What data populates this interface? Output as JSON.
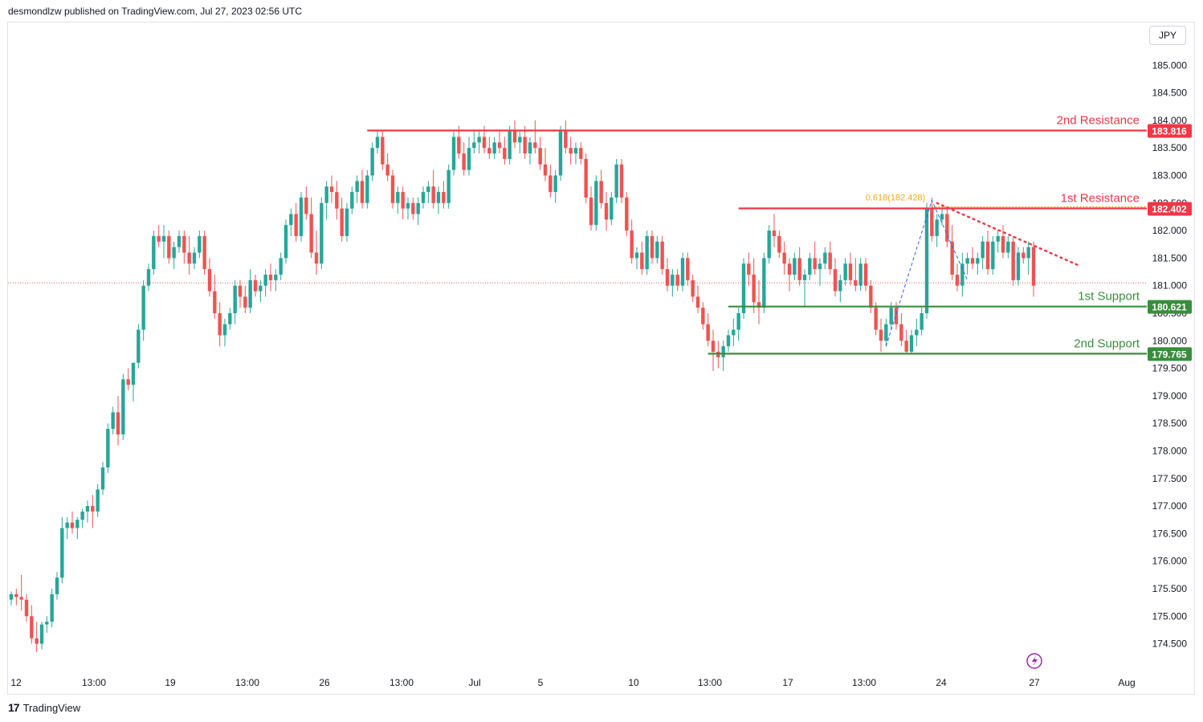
{
  "header": {
    "published": "desmondlzw published on TradingView.com, Jul 27, 2023 02:56 UTC"
  },
  "currency_button": "JPY",
  "footer": {
    "logo_glyph": "17",
    "brand": "TradingView"
  },
  "colors": {
    "up": "#26a69a",
    "down": "#ef5350",
    "resistance": "#f23645",
    "support": "#388e3c",
    "fib": "#f5a623",
    "trend": "#2962ff",
    "event": "#9c27b0"
  },
  "chart_data": {
    "type": "candlestick",
    "ylim": [
      174.1,
      185.5
    ],
    "y_ticks": [
      "174.500",
      "175.000",
      "175.500",
      "176.000",
      "176.500",
      "177.000",
      "177.500",
      "178.000",
      "178.500",
      "179.000",
      "179.500",
      "180.000",
      "180.500",
      "181.000",
      "181.500",
      "182.000",
      "182.500",
      "183.000",
      "183.500",
      "184.000",
      "184.500",
      "185.000"
    ],
    "x_ticks": [
      "12",
      "13:00",
      "19",
      "13:00",
      "26",
      "13:00",
      "Jul",
      "5",
      "10",
      "13:00",
      "17",
      "13:00",
      "24",
      "27",
      "Aug"
    ],
    "levels": [
      {
        "label": "2nd Resistance",
        "value": "183.816",
        "kind": "resistance"
      },
      {
        "label": "1st Resistance",
        "value": "182.402",
        "kind": "resistance"
      },
      {
        "label": "1st Support",
        "value": "180.621",
        "kind": "support"
      },
      {
        "label": "2nd Support",
        "value": "179.765",
        "kind": "support"
      }
    ],
    "fib_label": "0.618(182.428)",
    "current_price": 181.05,
    "candles": [
      [
        175.3,
        175.45,
        175.2,
        175.4
      ],
      [
        175.4,
        175.5,
        175.2,
        175.35
      ],
      [
        175.35,
        175.75,
        175.1,
        175.3
      ],
      [
        175.3,
        175.4,
        174.9,
        175.0
      ],
      [
        175.0,
        175.2,
        174.5,
        174.6
      ],
      [
        174.6,
        174.9,
        174.35,
        174.5
      ],
      [
        174.5,
        174.9,
        174.4,
        174.85
      ],
      [
        174.85,
        175.0,
        174.7,
        174.9
      ],
      [
        174.9,
        175.5,
        174.8,
        175.4
      ],
      [
        175.4,
        175.8,
        175.3,
        175.7
      ],
      [
        175.7,
        176.8,
        175.6,
        176.6
      ],
      [
        176.6,
        176.8,
        176.4,
        176.7
      ],
      [
        176.7,
        176.9,
        176.5,
        176.6
      ],
      [
        176.6,
        176.8,
        176.4,
        176.75
      ],
      [
        176.75,
        176.95,
        176.6,
        176.9
      ],
      [
        176.9,
        177.1,
        176.7,
        177.0
      ],
      [
        177.0,
        177.2,
        176.6,
        176.9
      ],
      [
        176.9,
        177.4,
        176.8,
        177.3
      ],
      [
        177.3,
        177.8,
        177.2,
        177.7
      ],
      [
        177.7,
        178.5,
        177.6,
        178.4
      ],
      [
        178.4,
        178.8,
        178.3,
        178.7
      ],
      [
        178.7,
        179.0,
        178.1,
        178.3
      ],
      [
        178.3,
        179.4,
        178.2,
        179.3
      ],
      [
        179.3,
        179.5,
        179.1,
        179.2
      ],
      [
        179.2,
        179.6,
        178.9,
        179.6
      ],
      [
        179.6,
        180.3,
        179.5,
        180.2
      ],
      [
        180.2,
        181.1,
        180.0,
        181.0
      ],
      [
        181.0,
        181.4,
        180.9,
        181.3
      ],
      [
        181.3,
        182.0,
        181.2,
        181.9
      ],
      [
        181.9,
        182.1,
        181.7,
        181.8
      ],
      [
        181.8,
        182.1,
        181.5,
        181.9
      ],
      [
        181.9,
        182.0,
        181.4,
        181.5
      ],
      [
        181.5,
        181.8,
        181.3,
        181.7
      ],
      [
        181.7,
        182.0,
        181.6,
        181.9
      ],
      [
        181.9,
        182.0,
        181.4,
        181.6
      ],
      [
        181.6,
        181.9,
        181.2,
        181.4
      ],
      [
        181.4,
        181.7,
        181.3,
        181.6
      ],
      [
        181.6,
        182.0,
        181.5,
        181.9
      ],
      [
        181.9,
        182.0,
        181.2,
        181.3
      ],
      [
        181.3,
        181.5,
        180.8,
        180.9
      ],
      [
        180.9,
        181.2,
        180.4,
        180.5
      ],
      [
        180.5,
        180.7,
        179.9,
        180.1
      ],
      [
        180.1,
        180.4,
        179.9,
        180.3
      ],
      [
        180.3,
        180.6,
        180.2,
        180.5
      ],
      [
        180.5,
        181.1,
        180.3,
        181.0
      ],
      [
        181.0,
        181.1,
        180.6,
        180.8
      ],
      [
        180.8,
        181.0,
        180.5,
        180.6
      ],
      [
        180.6,
        181.3,
        180.5,
        181.1
      ],
      [
        181.1,
        181.2,
        180.8,
        180.9
      ],
      [
        180.9,
        181.1,
        180.7,
        181.0
      ],
      [
        181.0,
        181.3,
        180.8,
        181.2
      ],
      [
        181.2,
        181.4,
        180.9,
        181.1
      ],
      [
        181.1,
        181.3,
        180.9,
        181.2
      ],
      [
        181.2,
        181.6,
        181.1,
        181.5
      ],
      [
        181.5,
        182.2,
        181.4,
        182.1
      ],
      [
        182.1,
        182.4,
        181.9,
        182.3
      ],
      [
        182.3,
        182.5,
        181.8,
        181.9
      ],
      [
        181.9,
        182.7,
        181.8,
        182.6
      ],
      [
        182.6,
        182.8,
        182.2,
        182.3
      ],
      [
        182.3,
        182.6,
        181.5,
        181.6
      ],
      [
        181.6,
        182.0,
        181.2,
        181.4
      ],
      [
        181.4,
        182.6,
        181.3,
        182.5
      ],
      [
        182.5,
        182.9,
        182.2,
        182.8
      ],
      [
        182.8,
        183.0,
        182.5,
        182.7
      ],
      [
        182.7,
        182.9,
        182.2,
        182.4
      ],
      [
        182.4,
        182.6,
        181.8,
        181.9
      ],
      [
        181.9,
        182.5,
        181.8,
        182.4
      ],
      [
        182.4,
        182.8,
        182.3,
        182.7
      ],
      [
        182.7,
        183.0,
        182.5,
        182.9
      ],
      [
        182.9,
        183.1,
        182.4,
        182.5
      ],
      [
        182.5,
        183.1,
        182.4,
        183.0
      ],
      [
        183.0,
        183.6,
        182.9,
        183.5
      ],
      [
        183.5,
        183.8,
        183.4,
        183.7
      ],
      [
        183.7,
        183.8,
        183.1,
        183.2
      ],
      [
        183.2,
        183.4,
        182.9,
        183.0
      ],
      [
        183.0,
        183.1,
        182.4,
        182.5
      ],
      [
        182.5,
        182.8,
        182.3,
        182.7
      ],
      [
        182.7,
        182.8,
        182.2,
        182.4
      ],
      [
        182.4,
        182.6,
        182.2,
        182.5
      ],
      [
        182.5,
        182.6,
        182.2,
        182.3
      ],
      [
        182.3,
        182.6,
        182.1,
        182.5
      ],
      [
        182.5,
        182.8,
        182.4,
        182.7
      ],
      [
        182.7,
        182.9,
        182.5,
        182.8
      ],
      [
        182.8,
        183.1,
        182.4,
        182.5
      ],
      [
        182.5,
        182.8,
        182.3,
        182.7
      ],
      [
        182.7,
        182.9,
        182.4,
        182.5
      ],
      [
        182.5,
        183.2,
        182.4,
        183.1
      ],
      [
        183.1,
        183.8,
        183.0,
        183.7
      ],
      [
        183.7,
        183.9,
        183.3,
        183.4
      ],
      [
        183.4,
        183.6,
        183.0,
        183.1
      ],
      [
        183.1,
        183.7,
        183.0,
        183.5
      ],
      [
        183.5,
        183.8,
        183.4,
        183.6
      ],
      [
        183.6,
        183.8,
        183.4,
        183.7
      ],
      [
        183.7,
        183.9,
        183.4,
        183.5
      ],
      [
        183.5,
        183.7,
        183.3,
        183.4
      ],
      [
        183.4,
        183.7,
        183.3,
        183.6
      ],
      [
        183.6,
        183.8,
        183.4,
        183.5
      ],
      [
        183.5,
        183.7,
        183.2,
        183.3
      ],
      [
        183.3,
        183.9,
        183.2,
        183.8
      ],
      [
        183.8,
        184.0,
        183.5,
        183.6
      ],
      [
        183.6,
        183.8,
        183.4,
        183.7
      ],
      [
        183.7,
        183.9,
        183.3,
        183.4
      ],
      [
        183.4,
        183.7,
        183.2,
        183.6
      ],
      [
        183.6,
        184.0,
        183.4,
        183.5
      ],
      [
        183.5,
        183.7,
        183.1,
        183.2
      ],
      [
        183.2,
        183.5,
        182.9,
        183.0
      ],
      [
        183.0,
        183.2,
        182.6,
        182.7
      ],
      [
        182.7,
        183.1,
        182.5,
        183.0
      ],
      [
        183.0,
        183.9,
        182.9,
        183.8
      ],
      [
        183.8,
        184.0,
        183.4,
        183.5
      ],
      [
        183.5,
        183.7,
        183.2,
        183.4
      ],
      [
        183.4,
        183.6,
        183.2,
        183.5
      ],
      [
        183.5,
        183.6,
        183.2,
        183.3
      ],
      [
        183.3,
        183.4,
        182.5,
        182.6
      ],
      [
        182.6,
        182.8,
        182.0,
        182.1
      ],
      [
        182.1,
        183.0,
        182.0,
        182.9
      ],
      [
        182.9,
        183.1,
        182.4,
        182.5
      ],
      [
        182.5,
        182.7,
        182.0,
        182.2
      ],
      [
        182.2,
        182.7,
        182.1,
        182.6
      ],
      [
        182.6,
        183.3,
        182.5,
        183.2
      ],
      [
        183.2,
        183.3,
        182.5,
        182.6
      ],
      [
        182.6,
        182.7,
        181.9,
        182.0
      ],
      [
        182.0,
        182.2,
        181.4,
        181.5
      ],
      [
        181.5,
        181.7,
        181.3,
        181.6
      ],
      [
        181.6,
        181.8,
        181.2,
        181.3
      ],
      [
        181.3,
        182.0,
        181.2,
        181.9
      ],
      [
        181.9,
        182.0,
        181.4,
        181.5
      ],
      [
        181.5,
        181.9,
        181.4,
        181.8
      ],
      [
        181.8,
        181.9,
        181.2,
        181.3
      ],
      [
        181.3,
        181.5,
        180.9,
        181.0
      ],
      [
        181.0,
        181.3,
        180.8,
        181.2
      ],
      [
        181.2,
        181.3,
        180.9,
        181.0
      ],
      [
        181.0,
        181.6,
        180.9,
        181.5
      ],
      [
        181.5,
        181.6,
        181.0,
        181.1
      ],
      [
        181.1,
        181.2,
        180.7,
        180.8
      ],
      [
        180.8,
        181.0,
        180.5,
        180.6
      ],
      [
        180.6,
        180.7,
        180.2,
        180.3
      ],
      [
        180.3,
        180.5,
        179.9,
        180.0
      ],
      [
        180.0,
        180.2,
        179.45,
        179.8
      ],
      [
        179.8,
        180.0,
        179.5,
        179.7
      ],
      [
        179.7,
        180.0,
        179.45,
        179.9
      ],
      [
        179.9,
        180.2,
        179.8,
        180.1
      ],
      [
        180.1,
        180.4,
        179.9,
        180.2
      ],
      [
        180.2,
        180.6,
        180.0,
        180.5
      ],
      [
        180.5,
        181.5,
        180.4,
        181.4
      ],
      [
        181.4,
        181.6,
        181.0,
        181.2
      ],
      [
        181.2,
        181.5,
        180.5,
        180.7
      ],
      [
        180.7,
        181.1,
        180.3,
        180.6
      ],
      [
        180.6,
        181.6,
        180.5,
        181.5
      ],
      [
        181.5,
        182.1,
        181.4,
        182.0
      ],
      [
        182.0,
        182.3,
        181.7,
        181.9
      ],
      [
        181.9,
        182.0,
        181.5,
        181.6
      ],
      [
        181.6,
        181.8,
        181.2,
        181.4
      ],
      [
        181.4,
        181.5,
        180.9,
        181.2
      ],
      [
        181.2,
        181.6,
        181.1,
        181.5
      ],
      [
        181.5,
        181.7,
        181.0,
        181.1
      ],
      [
        181.1,
        181.3,
        180.6,
        181.2
      ],
      [
        181.2,
        181.6,
        181.1,
        181.5
      ],
      [
        181.5,
        181.8,
        181.2,
        181.3
      ],
      [
        181.3,
        181.5,
        181.0,
        181.4
      ],
      [
        181.4,
        181.7,
        181.3,
        181.6
      ],
      [
        181.6,
        181.8,
        181.2,
        181.3
      ],
      [
        181.3,
        181.5,
        180.8,
        180.9
      ],
      [
        180.9,
        181.2,
        180.7,
        181.1
      ],
      [
        181.1,
        181.5,
        181.0,
        181.4
      ],
      [
        181.4,
        181.6,
        181.0,
        181.1
      ],
      [
        181.1,
        181.5,
        180.9,
        181.0
      ],
      [
        181.0,
        181.5,
        180.9,
        181.4
      ],
      [
        181.4,
        181.5,
        180.9,
        181.0
      ],
      [
        181.0,
        181.1,
        180.5,
        180.6
      ],
      [
        180.6,
        180.7,
        180.1,
        180.2
      ],
      [
        180.2,
        180.4,
        179.8,
        180.0
      ],
      [
        180.0,
        180.4,
        179.9,
        180.3
      ],
      [
        180.3,
        180.7,
        180.2,
        180.6
      ],
      [
        180.6,
        180.7,
        180.2,
        180.3
      ],
      [
        180.3,
        180.5,
        179.9,
        180.0
      ],
      [
        180.0,
        180.2,
        179.75,
        179.8
      ],
      [
        179.8,
        180.2,
        179.75,
        180.1
      ],
      [
        180.1,
        180.4,
        179.9,
        180.2
      ],
      [
        180.2,
        180.6,
        180.1,
        180.5
      ],
      [
        180.5,
        182.5,
        180.4,
        182.4
      ],
      [
        182.4,
        182.6,
        181.8,
        181.9
      ],
      [
        181.9,
        182.3,
        181.7,
        182.2
      ],
      [
        182.2,
        182.4,
        182.1,
        182.3
      ],
      [
        182.3,
        182.4,
        181.7,
        181.8
      ],
      [
        181.8,
        182.1,
        181.1,
        181.2
      ],
      [
        181.2,
        181.4,
        180.9,
        181.0
      ],
      [
        181.0,
        181.6,
        180.8,
        181.4
      ],
      [
        181.4,
        181.6,
        181.2,
        181.5
      ],
      [
        181.5,
        181.7,
        181.3,
        181.4
      ],
      [
        181.4,
        181.6,
        181.2,
        181.5
      ],
      [
        181.5,
        181.9,
        181.3,
        181.8
      ],
      [
        181.8,
        182.0,
        181.2,
        181.3
      ],
      [
        181.3,
        181.9,
        181.2,
        181.8
      ],
      [
        181.8,
        182.0,
        181.6,
        181.9
      ],
      [
        181.9,
        182.1,
        181.5,
        181.6
      ],
      [
        181.6,
        181.9,
        181.5,
        181.8
      ],
      [
        181.8,
        181.9,
        181.0,
        181.1
      ],
      [
        181.1,
        181.7,
        181.0,
        181.6
      ],
      [
        181.6,
        181.7,
        181.4,
        181.5
      ],
      [
        181.5,
        181.8,
        181.2,
        181.7
      ],
      [
        181.7,
        181.8,
        180.8,
        181.0
      ]
    ]
  }
}
